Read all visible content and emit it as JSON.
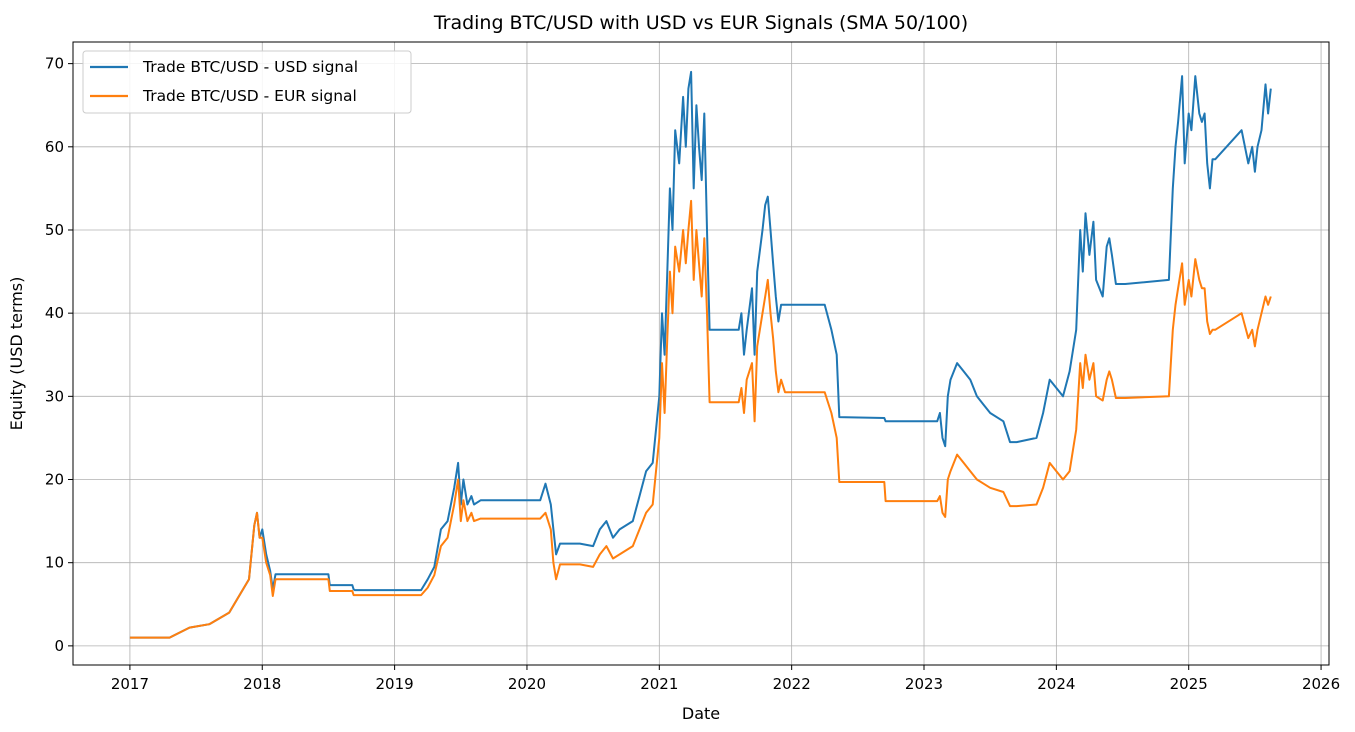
{
  "chart_data": {
    "type": "line",
    "title": "Trading BTC/USD with USD vs EUR Signals (SMA 50/100)",
    "xlabel": "Date",
    "ylabel": "Equity (USD terms)",
    "xlim": [
      2016.57,
      2026.06
    ],
    "ylim": [
      -2.3,
      72.6
    ],
    "xticks": [
      2017,
      2018,
      2019,
      2020,
      2021,
      2022,
      2023,
      2024,
      2025,
      2026
    ],
    "xtick_labels": [
      "2017",
      "2018",
      "2019",
      "2020",
      "2021",
      "2022",
      "2023",
      "2024",
      "2025",
      "2026"
    ],
    "yticks": [
      0,
      10,
      20,
      30,
      40,
      50,
      60,
      70
    ],
    "ytick_labels": [
      "0",
      "10",
      "20",
      "30",
      "40",
      "50",
      "60",
      "70"
    ],
    "grid": true,
    "legend_position": "upper-left",
    "series": [
      {
        "name": "Trade BTC/USD - USD signal",
        "color": "#1f77b4",
        "x": [
          2017.0,
          2017.3,
          2017.45,
          2017.6,
          2017.75,
          2017.9,
          2017.94,
          2017.96,
          2017.98,
          2018.0,
          2018.03,
          2018.06,
          2018.08,
          2018.1,
          2018.12,
          2018.2,
          2018.5,
          2018.51,
          2018.68,
          2018.69,
          2018.7,
          2019.2,
          2019.25,
          2019.3,
          2019.35,
          2019.4,
          2019.45,
          2019.48,
          2019.5,
          2019.52,
          2019.55,
          2019.58,
          2019.6,
          2019.65,
          2019.7,
          2019.75,
          2019.8,
          2020.1,
          2020.14,
          2020.18,
          2020.2,
          2020.22,
          2020.25,
          2020.4,
          2020.5,
          2020.55,
          2020.6,
          2020.65,
          2020.7,
          2020.8,
          2020.85,
          2020.9,
          2020.95,
          2021.0,
          2021.02,
          2021.04,
          2021.06,
          2021.08,
          2021.1,
          2021.12,
          2021.15,
          2021.18,
          2021.2,
          2021.22,
          2021.24,
          2021.26,
          2021.28,
          2021.3,
          2021.32,
          2021.34,
          2021.36,
          2021.38,
          2021.4,
          2021.42,
          2021.6,
          2021.62,
          2021.64,
          2021.66,
          2021.7,
          2021.72,
          2021.74,
          2021.78,
          2021.8,
          2021.82,
          2021.84,
          2021.86,
          2021.88,
          2021.9,
          2021.92,
          2021.95,
          2022.25,
          2022.3,
          2022.34,
          2022.36,
          2022.7,
          2022.71,
          2022.72,
          2023.1,
          2023.12,
          2023.14,
          2023.16,
          2023.18,
          2023.2,
          2023.25,
          2023.3,
          2023.35,
          2023.4,
          2023.45,
          2023.5,
          2023.6,
          2023.65,
          2023.7,
          2023.85,
          2023.9,
          2023.95,
          2024.0,
          2024.05,
          2024.1,
          2024.15,
          2024.18,
          2024.2,
          2024.22,
          2024.25,
          2024.28,
          2024.3,
          2024.35,
          2024.38,
          2024.4,
          2024.42,
          2024.45,
          2024.5,
          2024.52,
          2024.85,
          2024.88,
          2024.9,
          2024.92,
          2024.95,
          2024.97,
          2025.0,
          2025.02,
          2025.05,
          2025.08,
          2025.1,
          2025.12,
          2025.14,
          2025.16,
          2025.18,
          2025.2,
          2025.4,
          2025.45,
          2025.48,
          2025.5,
          2025.52,
          2025.55,
          2025.58,
          2025.6,
          2025.62
        ],
        "y": [
          1.0,
          1.0,
          2.2,
          2.6,
          4.0,
          8.0,
          14.5,
          16.0,
          13.0,
          14.0,
          11.0,
          9.0,
          6.8,
          8.6,
          8.6,
          8.6,
          8.6,
          7.3,
          7.3,
          6.8,
          6.7,
          6.7,
          8.0,
          9.5,
          14.0,
          15.0,
          19.0,
          22.0,
          17.0,
          20.0,
          17.0,
          18.0,
          17.0,
          17.5,
          17.5,
          17.5,
          17.5,
          17.5,
          19.5,
          17.0,
          14.0,
          11.0,
          12.3,
          12.3,
          12.0,
          14.0,
          15.0,
          13.0,
          14.0,
          15.0,
          18.0,
          21.0,
          22.0,
          30.0,
          40.0,
          35.0,
          45.0,
          55.0,
          50.0,
          62.0,
          58.0,
          66.0,
          60.0,
          67.0,
          69.0,
          55.0,
          65.0,
          60.0,
          56.0,
          64.0,
          50.0,
          38.0,
          38.0,
          38.0,
          38.0,
          40.0,
          35.0,
          38.0,
          43.0,
          35.0,
          45.0,
          50.0,
          53.0,
          54.0,
          50.0,
          46.0,
          42.0,
          39.0,
          41.0,
          41.0,
          41.0,
          38.0,
          35.0,
          27.5,
          27.4,
          27.0,
          27.0,
          27.0,
          28.0,
          25.0,
          24.0,
          30.0,
          32.0,
          34.0,
          33.0,
          32.0,
          30.0,
          29.0,
          28.0,
          27.0,
          24.5,
          24.5,
          25.0,
          28.0,
          32.0,
          31.0,
          30.0,
          33.0,
          38.0,
          50.0,
          45.0,
          52.0,
          47.0,
          51.0,
          44.0,
          42.0,
          48.0,
          49.0,
          47.0,
          43.5,
          43.5,
          43.5,
          44.0,
          55.0,
          60.0,
          63.0,
          68.5,
          58.0,
          64.0,
          62.0,
          68.5,
          64.0,
          63.0,
          64.0,
          58.0,
          55.0,
          58.5,
          58.5,
          62.0,
          58.0,
          60.0,
          57.0,
          60.0,
          62.0,
          67.5,
          64.0,
          67.0
        ]
      },
      {
        "name": "Trade BTC/USD - EUR signal",
        "color": "#ff7f0e",
        "x": [
          2017.0,
          2017.3,
          2017.45,
          2017.6,
          2017.75,
          2017.9,
          2017.94,
          2017.96,
          2017.98,
          2018.0,
          2018.03,
          2018.06,
          2018.08,
          2018.1,
          2018.12,
          2018.2,
          2018.5,
          2018.51,
          2018.68,
          2018.69,
          2018.7,
          2019.2,
          2019.25,
          2019.3,
          2019.35,
          2019.4,
          2019.45,
          2019.48,
          2019.5,
          2019.52,
          2019.55,
          2019.58,
          2019.6,
          2019.65,
          2019.7,
          2019.75,
          2019.8,
          2020.1,
          2020.14,
          2020.18,
          2020.2,
          2020.22,
          2020.25,
          2020.4,
          2020.5,
          2020.55,
          2020.6,
          2020.65,
          2020.7,
          2020.8,
          2020.85,
          2020.9,
          2020.95,
          2021.0,
          2021.02,
          2021.04,
          2021.06,
          2021.08,
          2021.1,
          2021.12,
          2021.15,
          2021.18,
          2021.2,
          2021.22,
          2021.24,
          2021.26,
          2021.28,
          2021.3,
          2021.32,
          2021.34,
          2021.36,
          2021.38,
          2021.4,
          2021.42,
          2021.6,
          2021.62,
          2021.64,
          2021.66,
          2021.7,
          2021.72,
          2021.74,
          2021.78,
          2021.8,
          2021.82,
          2021.84,
          2021.86,
          2021.88,
          2021.9,
          2021.92,
          2021.95,
          2022.25,
          2022.3,
          2022.34,
          2022.36,
          2022.7,
          2022.71,
          2022.72,
          2023.1,
          2023.12,
          2023.14,
          2023.16,
          2023.18,
          2023.2,
          2023.25,
          2023.3,
          2023.35,
          2023.4,
          2023.45,
          2023.5,
          2023.6,
          2023.65,
          2023.7,
          2023.85,
          2023.9,
          2023.95,
          2024.0,
          2024.05,
          2024.1,
          2024.15,
          2024.18,
          2024.2,
          2024.22,
          2024.25,
          2024.28,
          2024.3,
          2024.35,
          2024.38,
          2024.4,
          2024.42,
          2024.45,
          2024.5,
          2024.52,
          2024.85,
          2024.88,
          2024.9,
          2024.92,
          2024.95,
          2024.97,
          2025.0,
          2025.02,
          2025.05,
          2025.08,
          2025.1,
          2025.12,
          2025.14,
          2025.16,
          2025.18,
          2025.2,
          2025.4,
          2025.45,
          2025.48,
          2025.5,
          2025.52,
          2025.55,
          2025.58,
          2025.6,
          2025.62
        ],
        "y": [
          1.0,
          1.0,
          2.2,
          2.6,
          4.0,
          8.0,
          14.5,
          16.0,
          13.0,
          13.0,
          10.0,
          8.5,
          6.0,
          8.0,
          8.0,
          8.0,
          8.0,
          6.6,
          6.6,
          6.1,
          6.1,
          6.1,
          7.0,
          8.5,
          12.0,
          13.0,
          17.0,
          20.0,
          15.0,
          17.5,
          15.0,
          16.0,
          15.0,
          15.3,
          15.3,
          15.3,
          15.3,
          15.3,
          16.0,
          14.0,
          10.0,
          8.0,
          9.8,
          9.8,
          9.5,
          11.0,
          12.0,
          10.5,
          11.0,
          12.0,
          14.0,
          16.0,
          17.0,
          25.0,
          34.0,
          28.0,
          37.0,
          45.0,
          40.0,
          48.0,
          45.0,
          50.0,
          46.0,
          50.0,
          53.5,
          44.0,
          50.0,
          46.0,
          42.0,
          49.0,
          40.0,
          29.3,
          29.3,
          29.3,
          29.3,
          31.0,
          28.0,
          32.0,
          34.0,
          27.0,
          36.0,
          40.0,
          42.0,
          44.0,
          40.0,
          37.0,
          33.0,
          30.5,
          32.0,
          30.5,
          30.5,
          28.0,
          25.0,
          19.7,
          19.7,
          17.4,
          17.4,
          17.4,
          18.0,
          16.0,
          15.5,
          20.0,
          21.0,
          23.0,
          22.0,
          21.0,
          20.0,
          19.5,
          19.0,
          18.5,
          16.8,
          16.8,
          17.0,
          19.0,
          22.0,
          21.0,
          20.0,
          21.0,
          26.0,
          34.0,
          31.0,
          35.0,
          32.0,
          34.0,
          30.0,
          29.5,
          32.0,
          33.0,
          32.0,
          29.8,
          29.8,
          29.8,
          30.0,
          38.0,
          41.0,
          43.0,
          46.0,
          41.0,
          44.0,
          42.0,
          46.5,
          44.0,
          43.0,
          43.0,
          39.0,
          37.5,
          38.0,
          38.0,
          40.0,
          37.0,
          38.0,
          36.0,
          38.0,
          40.0,
          42.0,
          41.0,
          42.0
        ]
      }
    ]
  }
}
